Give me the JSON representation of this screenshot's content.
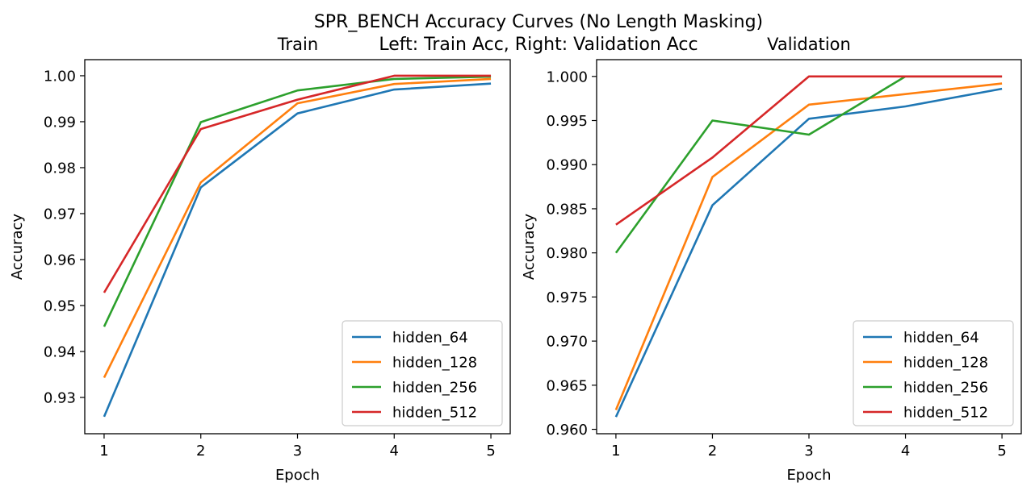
{
  "suptitle": {
    "line1": "SPR_BENCH Accuracy Curves (No Length Masking)",
    "line2": "Left: Train Acc, Right: Validation Acc"
  },
  "colors": {
    "hidden_64": "#1f77b4",
    "hidden_128": "#ff7f0e",
    "hidden_256": "#2ca02c",
    "hidden_512": "#d62728"
  },
  "chart_data": [
    {
      "type": "line",
      "title": "Train",
      "xlabel": "Epoch",
      "ylabel": "Accuracy",
      "x": [
        1,
        2,
        3,
        4,
        5
      ],
      "xticks": [
        "1",
        "2",
        "3",
        "4",
        "5"
      ],
      "xlim": [
        0.8,
        5.2
      ],
      "ylim": [
        0.9221,
        1.0035
      ],
      "yticks": [
        "0.93",
        "0.94",
        "0.95",
        "0.96",
        "0.97",
        "0.98",
        "0.99",
        "1.00"
      ],
      "ytick_values": [
        0.93,
        0.94,
        0.95,
        0.96,
        0.97,
        0.98,
        0.99,
        1.0
      ],
      "legend_position": "lower-right",
      "grid": false,
      "series": [
        {
          "name": "hidden_64",
          "values": [
            0.9258,
            0.9757,
            0.9918,
            0.997,
            0.9983
          ]
        },
        {
          "name": "hidden_128",
          "values": [
            0.9343,
            0.9768,
            0.994,
            0.9982,
            0.9993
          ]
        },
        {
          "name": "hidden_256",
          "values": [
            0.9454,
            0.9899,
            0.9968,
            0.9993,
            0.9998
          ]
        },
        {
          "name": "hidden_512",
          "values": [
            0.9528,
            0.9884,
            0.9948,
            1.0,
            1.0
          ]
        }
      ]
    },
    {
      "type": "line",
      "title": "Validation",
      "xlabel": "Epoch",
      "ylabel": "Accuracy",
      "x": [
        1,
        2,
        3,
        4,
        5
      ],
      "xticks": [
        "1",
        "2",
        "3",
        "4",
        "5"
      ],
      "xlim": [
        0.8,
        5.2
      ],
      "ylim": [
        0.9595,
        1.0019
      ],
      "yticks": [
        "0.960",
        "0.965",
        "0.970",
        "0.975",
        "0.980",
        "0.985",
        "0.990",
        "0.995",
        "1.000"
      ],
      "ytick_values": [
        0.96,
        0.965,
        0.97,
        0.975,
        0.98,
        0.985,
        0.99,
        0.995,
        1.0
      ],
      "legend_position": "lower-right",
      "grid": false,
      "series": [
        {
          "name": "hidden_64",
          "values": [
            0.9614,
            0.9854,
            0.9952,
            0.9966,
            0.9986
          ]
        },
        {
          "name": "hidden_128",
          "values": [
            0.9622,
            0.9886,
            0.9968,
            0.998,
            0.9992
          ]
        },
        {
          "name": "hidden_256",
          "values": [
            0.98,
            0.995,
            0.9934,
            1.0,
            1.0
          ]
        },
        {
          "name": "hidden_512",
          "values": [
            0.9832,
            0.9908,
            1.0,
            1.0,
            1.0
          ]
        }
      ]
    }
  ]
}
